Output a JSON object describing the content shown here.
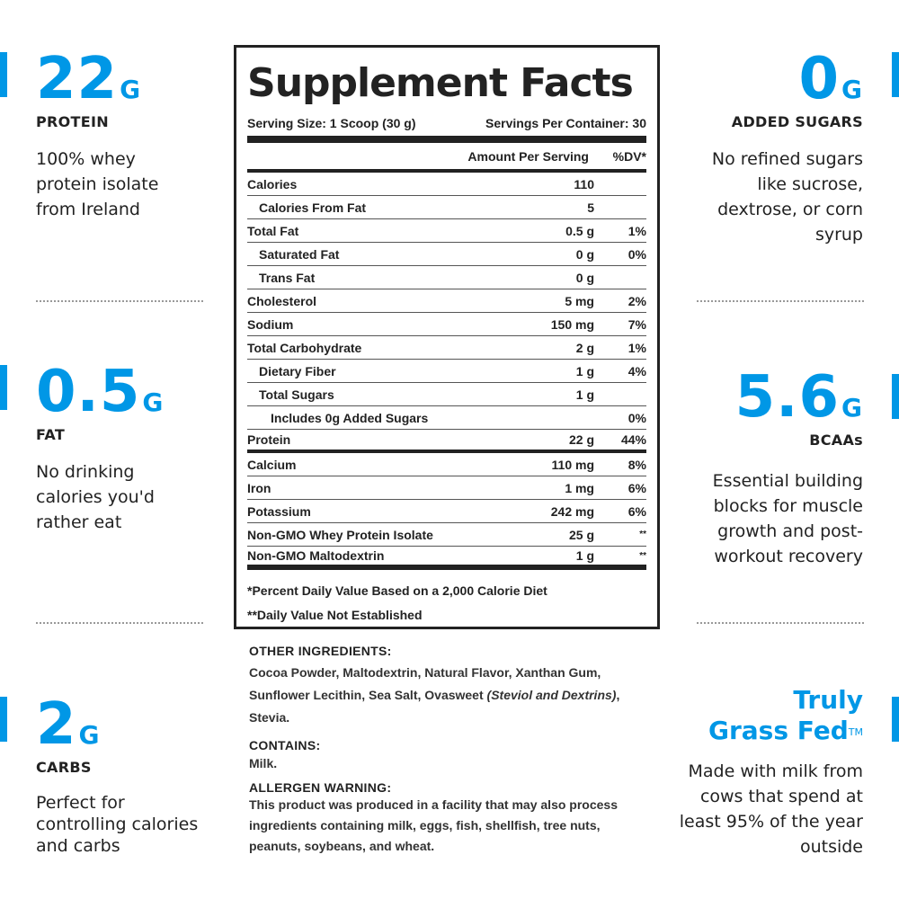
{
  "left": [
    {
      "num": "22",
      "unit": "G",
      "label": "PROTEIN",
      "desc": "100% whey protein isolate from Ireland"
    },
    {
      "num": "0.5",
      "unit": "G",
      "label": "FAT",
      "desc": "No drinking calories you'd rather eat"
    },
    {
      "num": "2",
      "unit": "G",
      "label": "CARBS",
      "desc": "Perfect for controlling calories and carbs"
    }
  ],
  "right": [
    {
      "num": "0",
      "unit": "G",
      "label": "ADDED SUGARS",
      "desc": "No refined sugars like sucrose, dextrose, or corn syrup"
    },
    {
      "num": "5.6",
      "unit": "G",
      "label": "BCAAs",
      "desc": "Essential building blocks for muscle growth and post-workout recovery"
    },
    {
      "title_line1": "Truly",
      "title_line2": "Grass Fed",
      "trademark": "TM",
      "desc": "Made with milk from cows that spend at least 95% of the year outside"
    }
  ],
  "facts": {
    "title": "Supplement Facts",
    "serving_size": "Serving Size: 1 Scoop (30 g)",
    "servings_per_container": "Servings Per Container: 30",
    "amount_header": "Amount Per Serving",
    "dv_header": "%DV*",
    "rows": [
      {
        "name": "Calories",
        "amount": "110",
        "dv": ""
      },
      {
        "name": "Calories From Fat",
        "amount": "5",
        "dv": ""
      },
      {
        "name": "Total Fat",
        "amount": "0.5 g",
        "dv": "1%"
      },
      {
        "name": "Saturated Fat",
        "amount": "0 g",
        "dv": "0%"
      },
      {
        "name": "Trans Fat",
        "amount": "0 g",
        "dv": ""
      },
      {
        "name": "Cholesterol",
        "amount": "5 mg",
        "dv": "2%"
      },
      {
        "name": "Sodium",
        "amount": "150 mg",
        "dv": "7%"
      },
      {
        "name": "Total Carbohydrate",
        "amount": "2 g",
        "dv": "1%"
      },
      {
        "name": "Dietary Fiber",
        "amount": "1 g",
        "dv": "4%"
      },
      {
        "name": "Total Sugars",
        "amount": "1 g",
        "dv": ""
      },
      {
        "name": "Includes 0g Added Sugars",
        "amount": "",
        "dv": "0%"
      },
      {
        "name": "Protein",
        "amount": "22 g",
        "dv": "44%"
      },
      {
        "name": "Calcium",
        "amount": "110 mg",
        "dv": "8%"
      },
      {
        "name": "Iron",
        "amount": "1 mg",
        "dv": "6%"
      },
      {
        "name": "Potassium",
        "amount": "242 mg",
        "dv": "6%"
      },
      {
        "name": "Non-GMO Whey Protein Isolate",
        "amount": "25 g",
        "dv": "**"
      },
      {
        "name": "Non-GMO Maltodextrin",
        "amount": "1 g",
        "dv": "**"
      }
    ],
    "footnote1": "*Percent Daily Value Based on a 2,000 Calorie Diet",
    "footnote2": "**Daily Value Not Established"
  },
  "ingredients": {
    "other_heading": "OTHER INGREDIENTS:",
    "other_text": "Cocoa Powder, Maltodextrin, Natural Flavor, Xanthan Gum, Sunflower Lecithin, Sea Salt, Ovasweet",
    "other_italic": "(Steviol and Dextrins)",
    "other_tail": ", Stevia.",
    "contains_heading": "CONTAINS:",
    "contains_text": "Milk.",
    "allergen_heading": "ALLERGEN WARNING:",
    "allergen_text": "This product was produced in a facility that may also process ingredients containing milk, eggs, fish, shellfish, tree nuts, peanuts, soybeans, and wheat."
  },
  "colors": {
    "accent": "#0097e6",
    "text": "#222222",
    "background": "#ffffff"
  }
}
